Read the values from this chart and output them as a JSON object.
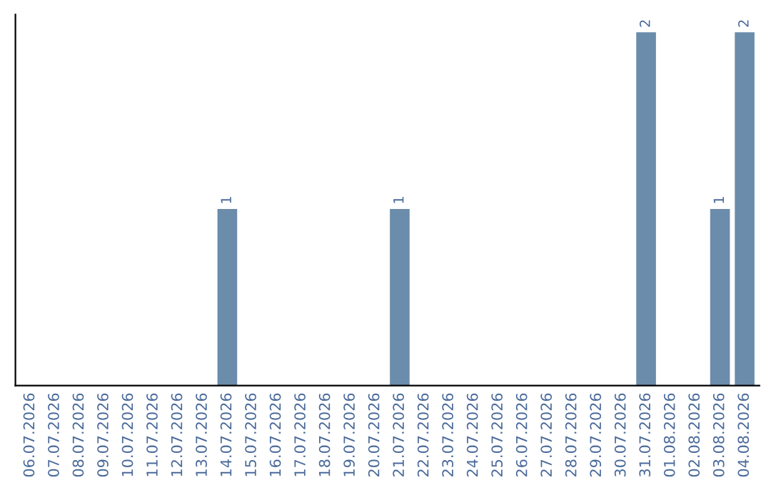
{
  "chart_data": {
    "type": "bar",
    "categories": [
      "06.07.2026",
      "07.07.2026",
      "08.07.2026",
      "09.07.2026",
      "10.07.2026",
      "11.07.2026",
      "12.07.2026",
      "13.07.2026",
      "14.07.2026",
      "15.07.2026",
      "16.07.2026",
      "17.07.2026",
      "18.07.2026",
      "19.07.2026",
      "20.07.2026",
      "21.07.2026",
      "22.07.2026",
      "23.07.2026",
      "24.07.2026",
      "25.07.2026",
      "26.07.2026",
      "27.07.2026",
      "28.07.2026",
      "29.07.2026",
      "30.07.2026",
      "31.07.2026",
      "01.08.2026",
      "02.08.2026",
      "03.08.2026",
      "04.08.2026"
    ],
    "values": [
      0,
      0,
      0,
      0,
      0,
      0,
      0,
      0,
      1,
      0,
      0,
      0,
      0,
      0,
      0,
      1,
      0,
      0,
      0,
      0,
      0,
      0,
      0,
      0,
      0,
      2,
      0,
      0,
      1,
      2
    ],
    "color": "#6b8caa",
    "value_labels": [
      null,
      null,
      null,
      null,
      null,
      null,
      null,
      null,
      "1",
      null,
      null,
      null,
      null,
      null,
      null,
      "1",
      null,
      null,
      null,
      null,
      null,
      null,
      null,
      null,
      null,
      "2",
      null,
      null,
      "1",
      "2"
    ],
    "tick_labels": "x",
    "grid": false,
    "legend": false
  }
}
